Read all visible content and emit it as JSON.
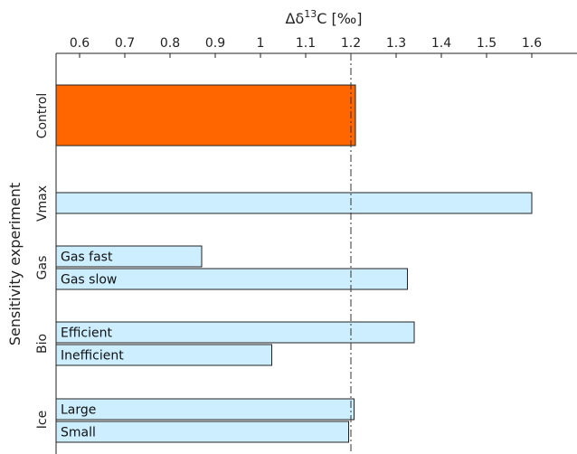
{
  "chart_data": {
    "type": "bar",
    "orientation": "horizontal",
    "xlabel_base": "Δδ",
    "xlabel_sup": "13",
    "xlabel_rest": "C [‰]",
    "ylabel": "Sensitivity experiment",
    "x_axis_position": "top",
    "xlim": [
      0.55,
      1.62
    ],
    "xticks": [
      0.6,
      0.7,
      0.8,
      0.9,
      1,
      1.1,
      1.2,
      1.3,
      1.4,
      1.5,
      1.6
    ],
    "xtick_labels": [
      "0.6",
      "0.7",
      "0.8",
      "0.9",
      "1",
      "1.1",
      "1.2",
      "1.3",
      "1.4",
      "1.5",
      "1.6"
    ],
    "reference_line": {
      "x": 1.2,
      "style": "dash-dot"
    },
    "groups": [
      {
        "name": "Control",
        "bars": [
          {
            "label": "",
            "value": 1.21,
            "color": "#ff6600"
          }
        ]
      },
      {
        "name": "Vmax",
        "bars": [
          {
            "label": "",
            "value": 1.6,
            "color": "#cceeff"
          }
        ]
      },
      {
        "name": "Gas",
        "bars": [
          {
            "label": "Gas fast",
            "value": 0.87,
            "color": "#cceeff"
          },
          {
            "label": "Gas slow",
            "value": 1.325,
            "color": "#cceeff"
          }
        ]
      },
      {
        "name": "Bio",
        "bars": [
          {
            "label": "Efficient",
            "value": 1.34,
            "color": "#cceeff"
          },
          {
            "label": "Inefficient",
            "value": 1.025,
            "color": "#cceeff"
          }
        ]
      },
      {
        "name": "Ice",
        "bars": [
          {
            "label": "Large",
            "value": 1.207,
            "color": "#cceeff"
          },
          {
            "label": "Small",
            "value": 1.195,
            "color": "#cceeff"
          }
        ]
      }
    ],
    "bar_edge_color": "#222222",
    "grid": false,
    "legend": "none"
  }
}
